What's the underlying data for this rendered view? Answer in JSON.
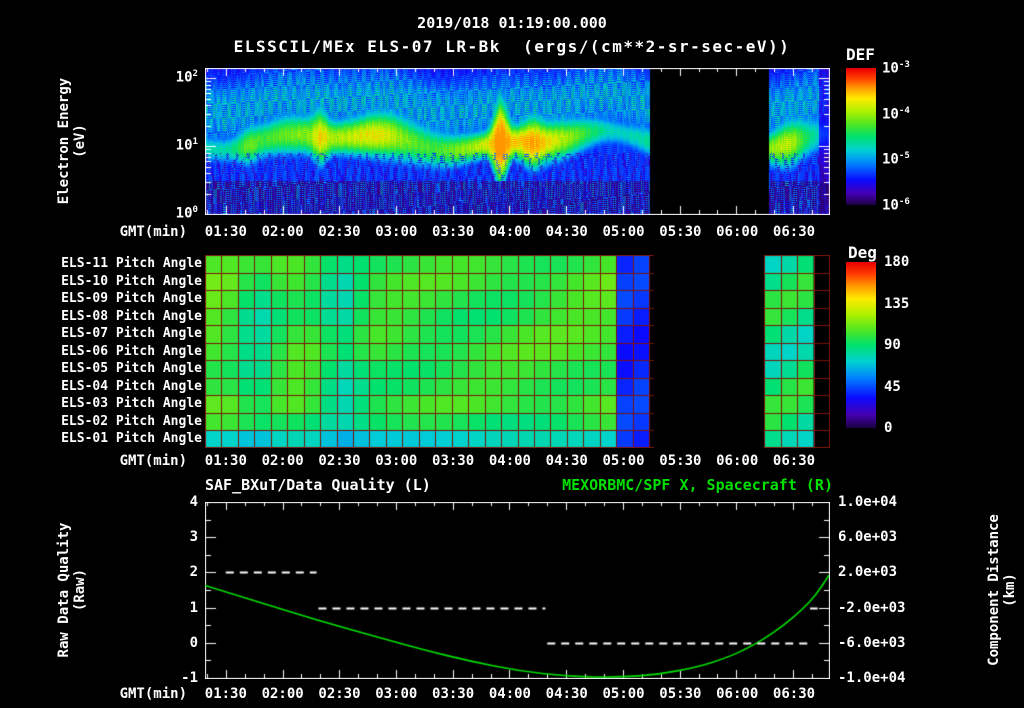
{
  "colors": {
    "background": "#000000",
    "foreground": "#ffffff",
    "accent_green": "#00e000",
    "grid_red": "#7a1408"
  },
  "header": {
    "title": "2019/018 01:19:00.000",
    "subtitle": "ELSSCIL/MEx ELS-07 LR-Bk  (ergs/(cm**2-sr-sec-eV))"
  },
  "time_axis": {
    "label": "GMT(min)",
    "start_min": 79,
    "end_min": 409,
    "start_label": "01:19",
    "tick_labels": [
      "01:30",
      "02:00",
      "02:30",
      "03:00",
      "03:30",
      "04:00",
      "04:30",
      "05:00",
      "05:30",
      "06:00",
      "06:30"
    ],
    "tick_minutes": [
      90,
      120,
      150,
      180,
      210,
      240,
      270,
      300,
      330,
      360,
      390
    ]
  },
  "chart_data": [
    {
      "id": "electron-energy-spectrogram",
      "type": "heatmap",
      "instrument": "ELSSCIL/MEx ELS-07 LR-Bk",
      "units": "ergs/(cm**2-sr-sec-eV)",
      "ylabel_lines": [
        "Electron Energy",
        "(eV)"
      ],
      "y_scale": "log",
      "y_ticks": [
        "10^0",
        "10^1",
        "10^2"
      ],
      "y_tick_logs": [
        0,
        1,
        2
      ],
      "y_range_log": [
        0,
        2.15
      ],
      "colorbar": {
        "title": "DEF",
        "ticks": [
          "10^-3",
          "10^-4",
          "10^-5",
          "10^-6"
        ]
      },
      "data_gap_min": [
        314,
        377
      ],
      "band": {
        "amp": 0.58,
        "center_logE": 1.08,
        "center_wobble": 0.1,
        "width_logE": 0.21
      },
      "events": [
        {
          "t": 102,
          "w": 4,
          "a": 0.1,
          "s": 0.15
        },
        {
          "t": 140,
          "w": 3,
          "a": 0.14,
          "s": 0.3
        },
        {
          "t": 170,
          "w": 14,
          "a": 0.22,
          "s": 0.25
        },
        {
          "t": 235,
          "w": 3,
          "a": 0.22,
          "s": 0.9
        },
        {
          "t": 252,
          "w": 4,
          "a": 0.1,
          "s": 0.2
        },
        {
          "t": 295,
          "w": 16,
          "a": -0.16,
          "s": 0
        },
        {
          "t": 387,
          "w": 7,
          "a": 0.18,
          "s": 0.2
        }
      ]
    },
    {
      "id": "pitch-angle-panels",
      "type": "heatmap",
      "rows": [
        "ELS-11 Pitch Angle",
        "ELS-10 Pitch Angle",
        "ELS-09 Pitch Angle",
        "ELS-08 Pitch Angle",
        "ELS-07 Pitch Angle",
        "ELS-06 Pitch Angle",
        "ELS-05 Pitch Angle",
        "ELS-04 Pitch Angle",
        "ELS-03 Pitch Angle",
        "ELS-02 Pitch Angle",
        "ELS-01 Pitch Angle"
      ],
      "grid_cols": 38,
      "colorbar": {
        "title": "Deg",
        "ticks": [
          "180",
          "135",
          "90",
          "45",
          "0"
        ],
        "range": [
          0,
          180
        ]
      },
      "data_gap_min": [
        316,
        374
      ],
      "features": {
        "typical_deg": 102,
        "bottom_row_deg": 74,
        "cyan_streaks_min": [
          106,
          151
        ],
        "low_angle_band": {
          "from_min": 299,
          "to_min": 314,
          "deg": 38
        },
        "post_gap": {
          "from_min": 374,
          "deg": 88
        },
        "black_tail_from_min": 403
      }
    },
    {
      "id": "quality-and-distance",
      "type": "line",
      "left_series": {
        "name": "SAF_BXuT/Data Quality (L)",
        "color": "#ffffff",
        "style": "dashed",
        "segments": [
          {
            "level": 2,
            "from_min": 90,
            "to_min": 138
          },
          {
            "level": 1,
            "from_min": 139,
            "to_min": 259
          },
          {
            "level": 0,
            "from_min": 260,
            "to_min": 398
          },
          {
            "level": 1,
            "from_min": 399,
            "to_min": 403
          }
        ]
      },
      "right_series": {
        "name": "MEXORBMC/SPF X, Spacecraft (R)",
        "color": "#00e000",
        "points": [
          [
            79,
            1.63
          ],
          [
            108,
            1.15
          ],
          [
            140,
            0.62
          ],
          [
            171,
            0.15
          ],
          [
            193,
            -0.18
          ],
          [
            219,
            -0.52
          ],
          [
            245,
            -0.8
          ],
          [
            272,
            -0.96
          ],
          [
            298,
            -0.98
          ],
          [
            319,
            -0.9
          ],
          [
            340,
            -0.68
          ],
          [
            355,
            -0.42
          ],
          [
            365,
            -0.18
          ],
          [
            375,
            0.12
          ],
          [
            385,
            0.5
          ],
          [
            395,
            0.95
          ],
          [
            402,
            1.35
          ],
          [
            409,
            1.92
          ]
        ]
      },
      "left_axis": {
        "label_lines": [
          "Raw Data Quality",
          "(Raw)"
        ],
        "ticks": [
          4,
          3,
          2,
          1,
          0,
          -1
        ],
        "range": [
          -1,
          4
        ]
      },
      "right_axis": {
        "label_lines": [
          "Component Distance",
          "(km)"
        ],
        "ticks": [
          "1.0e+04",
          "6.0e+03",
          "2.0e+03",
          "-2.0e+03",
          "-6.0e+03",
          "-1.0e+04"
        ]
      }
    }
  ]
}
